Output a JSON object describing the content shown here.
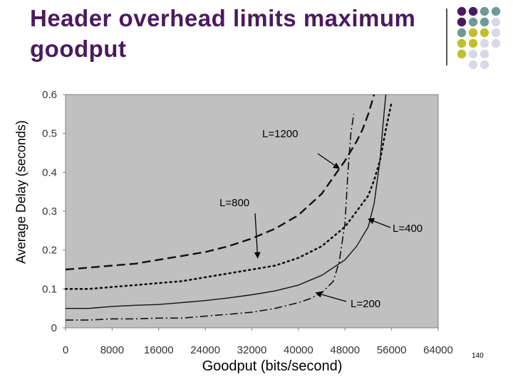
{
  "slide": {
    "title": "Header overhead limits maximum goodput",
    "page_number": "140",
    "accent_colors": {
      "purple": "#4b1a5e",
      "teal": "#6f9a9a",
      "olive": "#bfc02b",
      "lavender": "#d8d8e8"
    }
  },
  "chart_data": {
    "type": "line",
    "title": "",
    "xlabel": "Goodput (bits/second)",
    "ylabel": "Average Delay (seconds)",
    "xlim": [
      0,
      64000
    ],
    "ylim": [
      0,
      0.6
    ],
    "x_ticks": [
      "0",
      "8000",
      "16000",
      "24000",
      "32000",
      "40000",
      "48000",
      "56000",
      "64000"
    ],
    "y_ticks": [
      "0",
      "0.1",
      "0.2",
      "0.3",
      "0.4",
      "0.5",
      "0.6"
    ],
    "grid": false,
    "background": "#c0c0c0",
    "legend": "none",
    "series": [
      {
        "name": "L=200",
        "style": "dashdot",
        "x": [
          0,
          4000,
          8000,
          12000,
          16000,
          20000,
          24000,
          28000,
          32000,
          36000,
          40000,
          42000,
          44000,
          46000,
          47000,
          48000,
          48500,
          49000,
          49500
        ],
        "y": [
          0.02,
          0.02,
          0.023,
          0.023,
          0.025,
          0.025,
          0.03,
          0.035,
          0.04,
          0.05,
          0.065,
          0.075,
          0.09,
          0.12,
          0.17,
          0.27,
          0.4,
          0.5,
          0.55
        ]
      },
      {
        "name": "L=400",
        "style": "solid",
        "x": [
          0,
          4000,
          8000,
          12000,
          16000,
          20000,
          24000,
          28000,
          32000,
          36000,
          40000,
          44000,
          48000,
          50000,
          52000,
          53000,
          54000,
          54500,
          55000
        ],
        "y": [
          0.05,
          0.05,
          0.055,
          0.058,
          0.06,
          0.065,
          0.07,
          0.077,
          0.085,
          0.095,
          0.11,
          0.135,
          0.175,
          0.21,
          0.26,
          0.32,
          0.43,
          0.52,
          0.6
        ]
      },
      {
        "name": "L=800",
        "style": "dotted",
        "x": [
          0,
          4000,
          8000,
          12000,
          16000,
          20000,
          24000,
          28000,
          32000,
          36000,
          40000,
          44000,
          48000,
          50000,
          52000,
          53000,
          54000,
          55000,
          56000
        ],
        "y": [
          0.1,
          0.1,
          0.105,
          0.11,
          0.115,
          0.12,
          0.13,
          0.14,
          0.15,
          0.16,
          0.18,
          0.21,
          0.26,
          0.3,
          0.34,
          0.38,
          0.43,
          0.51,
          0.58
        ]
      },
      {
        "name": "L=1200",
        "style": "dashed",
        "x": [
          0,
          4000,
          8000,
          12000,
          16000,
          20000,
          24000,
          28000,
          32000,
          36000,
          40000,
          44000,
          48000,
          50000,
          51000,
          52000,
          53000
        ],
        "y": [
          0.15,
          0.155,
          0.16,
          0.165,
          0.175,
          0.185,
          0.195,
          0.21,
          0.23,
          0.255,
          0.29,
          0.345,
          0.43,
          0.48,
          0.51,
          0.55,
          0.6
        ]
      }
    ],
    "annotations": [
      {
        "text": "L=1200",
        "target_x": 47000,
        "target_y": 0.41
      },
      {
        "text": "L=800",
        "target_x": 33000,
        "target_y": 0.18
      },
      {
        "text": "L=400",
        "target_x": 52000,
        "target_y": 0.28
      },
      {
        "text": "L=200",
        "target_x": 43000,
        "target_y": 0.09
      }
    ]
  }
}
